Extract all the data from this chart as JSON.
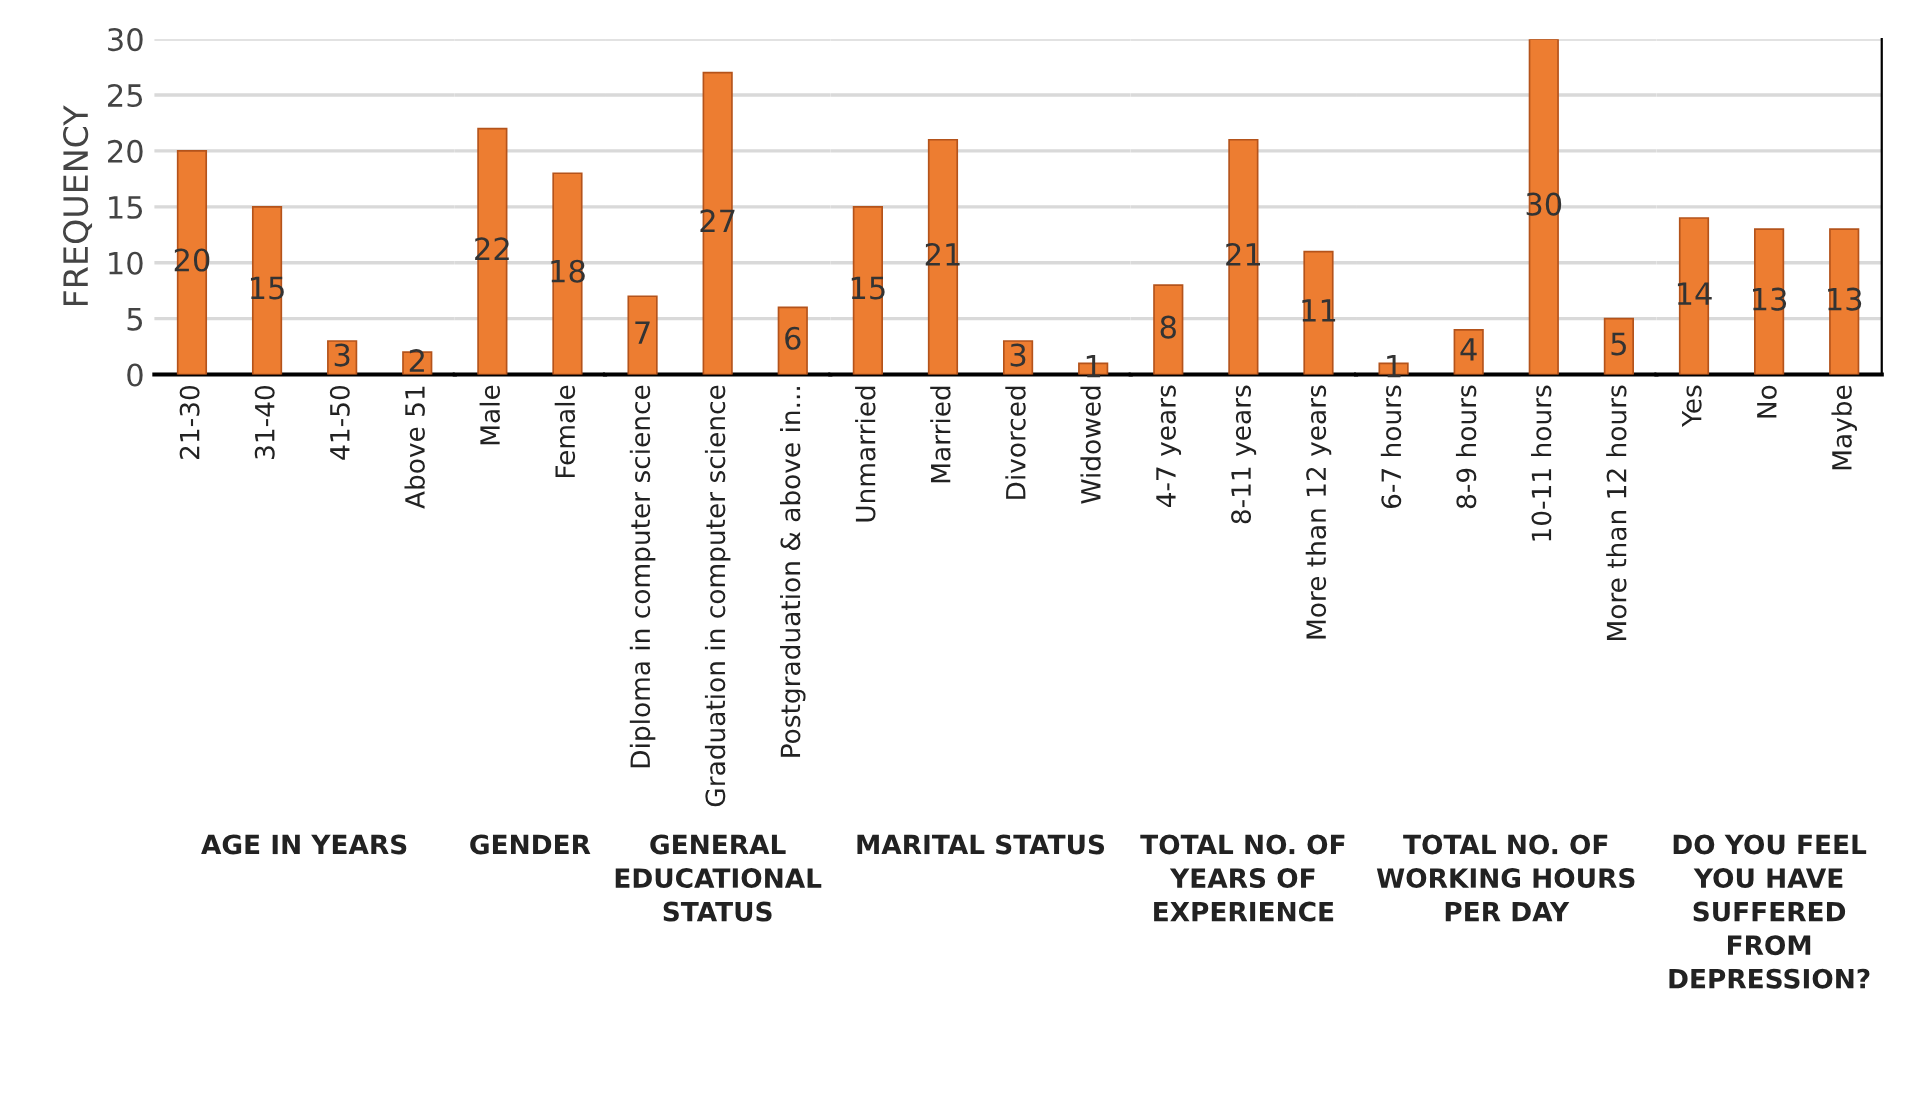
{
  "chart_data": [
    {
      "type": "bar",
      "title": "AGE IN YEARS",
      "ylabel": "FREQUENCY",
      "categories": [
        "21-30",
        "31-40",
        "41-50",
        "Above 51"
      ],
      "values": [
        20,
        15,
        3,
        2
      ],
      "color": "#ed7d31",
      "ylim": [
        0,
        30
      ],
      "yticks": [
        0,
        5,
        10,
        15,
        20,
        25,
        30
      ],
      "grid": "y",
      "data_labels": true
    },
    {
      "type": "bar",
      "title": "GENDER",
      "categories": [
        "Male",
        "Female"
      ],
      "values": [
        22,
        18
      ],
      "color": "#ed7d31",
      "ylim": [
        0,
        30
      ],
      "yticks": [
        0,
        5,
        10,
        15,
        20,
        25,
        30
      ],
      "grid": "y",
      "data_labels": true,
      "tick_labels": "x"
    },
    {
      "type": "bar",
      "title": "GENERAL EDUCATIONAL STATUS",
      "categories": [
        "Diploma in computer science",
        "Graduation in computer science",
        "Postgraduation & above in..."
      ],
      "values": [
        7,
        27,
        6
      ],
      "color": "#ed7d31",
      "ylim": [
        0,
        30
      ],
      "yticks": [
        0,
        5,
        10,
        15,
        20,
        25,
        30
      ],
      "grid": "y",
      "data_labels": true,
      "tick_labels": "x"
    },
    {
      "type": "bar",
      "title": "MARITAL STATUS",
      "categories": [
        "Unmarried",
        "Married",
        "Divorced",
        "Widowed"
      ],
      "values": [
        15,
        21,
        3,
        1
      ],
      "color": "#ed7d31",
      "ylim": [
        0,
        30
      ],
      "yticks": [
        0,
        5,
        10,
        15,
        20,
        25,
        30
      ],
      "grid": "y",
      "data_labels": true,
      "tick_labels": "x"
    },
    {
      "type": "bar",
      "title": "TOTAL NO. OF YEARS OF EXPERIENCE",
      "categories": [
        "4-7 years",
        "8-11 years",
        "More than 12 years"
      ],
      "values": [
        8,
        21,
        11
      ],
      "color": "#ed7d31",
      "ylim": [
        0,
        30
      ],
      "yticks": [
        0,
        5,
        10,
        15,
        20,
        25,
        30
      ],
      "grid": "y",
      "data_labels": true,
      "tick_labels": "x"
    },
    {
      "type": "bar",
      "title": "TOTAL NO. OF WORKING HOURS PER DAY",
      "categories": [
        "6-7 hours",
        "8-9 hours",
        "10-11 hours",
        "More than 12 hours"
      ],
      "values": [
        1,
        4,
        30,
        5
      ],
      "color": "#ed7d31",
      "ylim": [
        0,
        30
      ],
      "yticks": [
        0,
        5,
        10,
        15,
        20,
        25,
        30
      ],
      "grid": "y",
      "data_labels": true,
      "tick_labels": "x"
    },
    {
      "type": "bar",
      "title": "DO YOU FEEL YOU HAVE SUFFERED FROM DEPRESSION?",
      "categories": [
        "Yes",
        "No",
        "Maybe"
      ],
      "values": [
        14,
        13,
        13
      ],
      "color": "#ed7d31",
      "ylim": [
        0,
        30
      ],
      "yticks": [
        0,
        5,
        10,
        15,
        20,
        25,
        30
      ],
      "grid": "y",
      "data_labels": true,
      "tick_labels": "x"
    }
  ]
}
